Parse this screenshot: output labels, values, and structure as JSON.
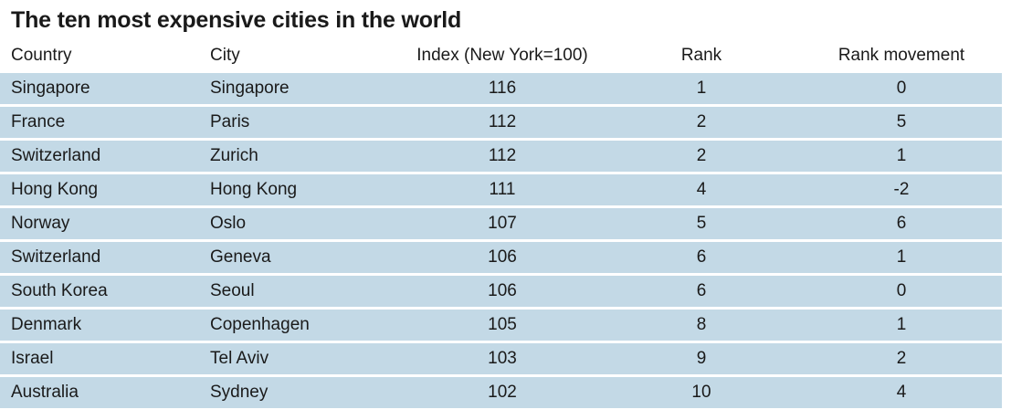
{
  "chart_data": {
    "type": "table",
    "title": "The ten most expensive cities in the world",
    "columns": [
      "Country",
      "City",
      "Index (New York=100)",
      "Rank",
      "Rank movement"
    ],
    "rows": [
      [
        "Singapore",
        "Singapore",
        "116",
        "1",
        "0"
      ],
      [
        "France",
        "Paris",
        "112",
        "2",
        "5"
      ],
      [
        "Switzerland",
        "Zurich",
        "112",
        "2",
        "1"
      ],
      [
        "Hong Kong",
        "Hong Kong",
        "111",
        "4",
        "-2"
      ],
      [
        "Norway",
        "Oslo",
        "107",
        "5",
        "6"
      ],
      [
        "Switzerland",
        "Geneva",
        "106",
        "6",
        "1"
      ],
      [
        "South Korea",
        "Seoul",
        "106",
        "6",
        "0"
      ],
      [
        "Denmark",
        "Copenhagen",
        "105",
        "8",
        "1"
      ],
      [
        "Israel",
        "Tel Aviv",
        "103",
        "9",
        "2"
      ],
      [
        "Australia",
        "Sydney",
        "102",
        "10",
        "4"
      ]
    ],
    "row_color": "#c3d9e6"
  }
}
